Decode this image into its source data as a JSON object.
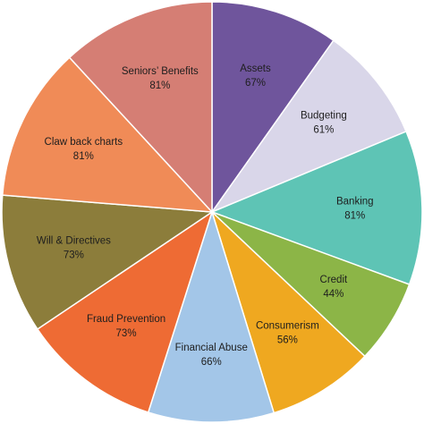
{
  "chart_data": {
    "type": "pie",
    "categories": [
      "Assets",
      "Budgeting",
      "Banking",
      "Credit",
      "Consumerism",
      "Financial Abuse",
      "Fraud Prevention",
      "Will & Directives",
      "Claw back charts",
      "Seniors’ Benefits"
    ],
    "values": [
      67,
      61,
      81,
      44,
      56,
      66,
      73,
      73,
      81,
      81
    ],
    "value_labels": [
      "67%",
      "61%",
      "81%",
      "44%",
      "56%",
      "66%",
      "73%",
      "73%",
      "81%",
      "81%"
    ],
    "colors": [
      "#6f559c",
      "#d9d6e9",
      "#5ec4b5",
      "#8cb547",
      "#efa820",
      "#a3c6e8",
      "#ee6b34",
      "#8c7d3b",
      "#f08b57",
      "#d57e74"
    ]
  }
}
